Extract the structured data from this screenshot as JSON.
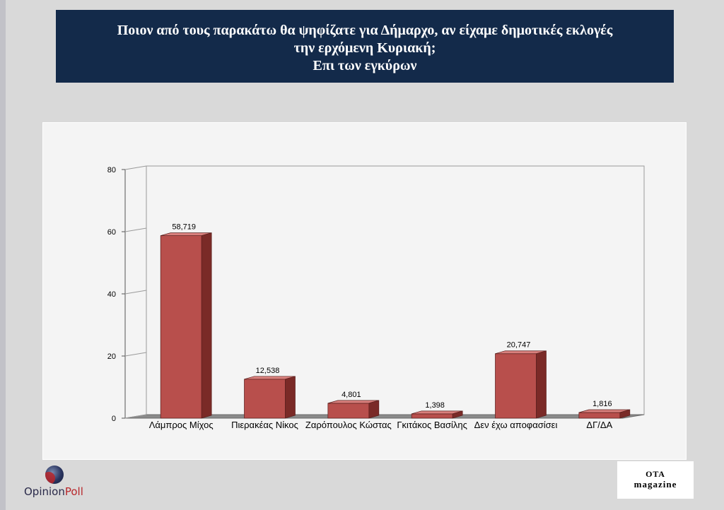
{
  "title": {
    "line1": "Ποιον από τους παρακάτω θα ψηφίζατε για Δήμαρχο, αν είχαμε δημοτικές εκλογές",
    "line2": "την ερχόμενη Κυριακή;",
    "line3": "Επι των εγκύρων"
  },
  "chart_data": {
    "type": "bar",
    "categories": [
      "Λάμπρος Μίχος",
      "Πιερακέας Νίκος",
      "Ζαρόπουλος Κώστας",
      "Γκιτάκος Βασίλης",
      "Δεν έχω αποφασίσει",
      "ΔΓ/ΔΑ"
    ],
    "values": [
      58.719,
      12.538,
      4.801,
      1.398,
      20.747,
      1.816
    ],
    "data_labels": [
      "58,719",
      "12,538",
      "4,801",
      "1,398",
      "20,747",
      "1,816"
    ],
    "ylim": [
      0,
      80
    ],
    "yticks": [
      0,
      20,
      40,
      60,
      80
    ],
    "grid": false,
    "bar_color": "#c0504d",
    "style": "3d-column"
  },
  "logos": {
    "opinionpoll_part1": "Opinion",
    "opinionpoll_part2": "Poll",
    "ota_line1": "ΟΤΑ",
    "ota_line2": "magazine"
  },
  "colors": {
    "title_bg": "#132a4a",
    "title_text": "#ffffff",
    "accent_red": "#b8262a"
  }
}
